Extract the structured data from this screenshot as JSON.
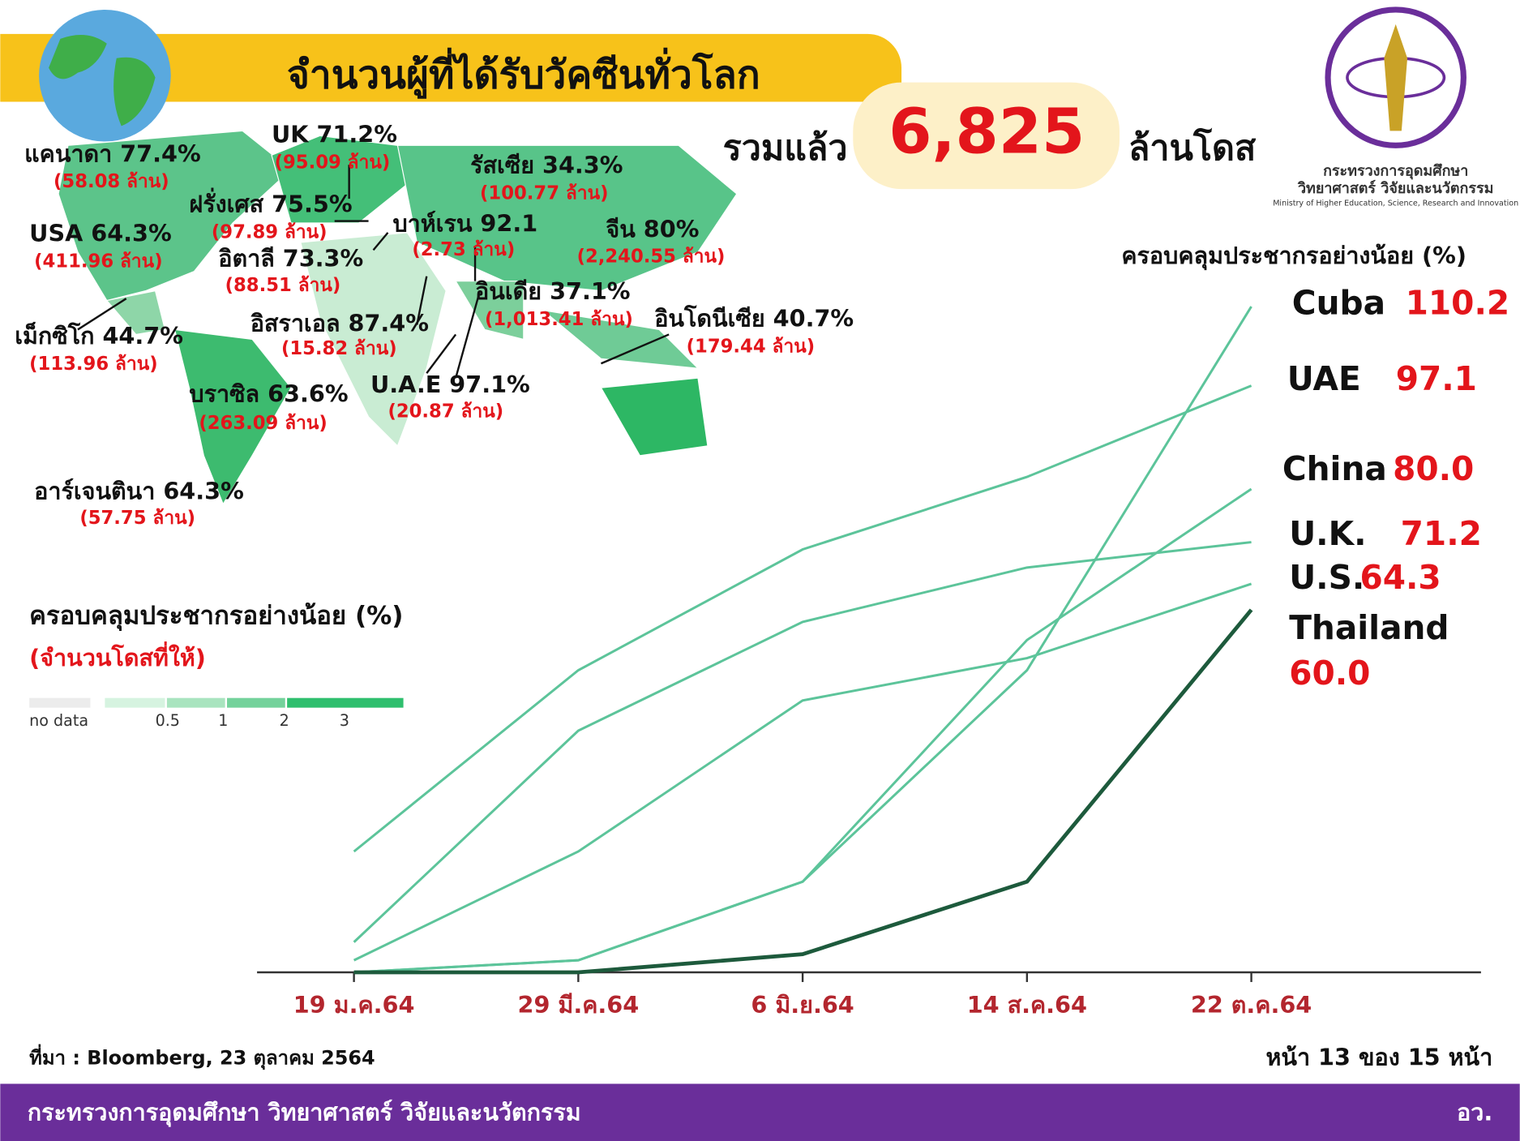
{
  "header": {
    "title": "จำนวนผู้ที่ได้รับวัคซีนทั่วโลก",
    "total_prefix": "รวมแล้ว",
    "total": "6,825",
    "total_suffix": "ล้านโดส"
  },
  "ministry": {
    "name_line1": "กระทรวงการอุดมศึกษา",
    "name_line2": "วิทยาศาสตร์ วิจัยและนวัตกรรม",
    "name_en": "Ministry of Higher Education, Science, Research and Innovation"
  },
  "map": {
    "labels": [
      {
        "country": "แคนาดา 77.4%",
        "doses": "(58.08 ล้าน)"
      },
      {
        "country": "UK 71.2%",
        "doses": "(95.09 ล้าน)"
      },
      {
        "country": "รัสเซีย 34.3%",
        "doses": "(100.77 ล้าน)"
      },
      {
        "country": "ฝรั่งเศส 75.5%",
        "doses": "(97.89 ล้าน)"
      },
      {
        "country": "USA 64.3%",
        "doses": "(411.96 ล้าน)"
      },
      {
        "country": "บาห์เรน 92.1",
        "doses": "(2.73 ล้าน)"
      },
      {
        "country": "จีน 80%",
        "doses": "(2,240.55 ล้าน)"
      },
      {
        "country": "อิตาลี 73.3%",
        "doses": "(88.51 ล้าน)"
      },
      {
        "country": "อินเดีย 37.1%",
        "doses": "(1,013.41 ล้าน)"
      },
      {
        "country": "อิสราเอล 87.4%",
        "doses": "(15.82 ล้าน)"
      },
      {
        "country": "อินโดนีเซีย 40.7%",
        "doses": "(179.44 ล้าน)"
      },
      {
        "country": "เม็กซิโก 44.7%",
        "doses": "(113.96 ล้าน)"
      },
      {
        "country": "U.A.E 97.1%",
        "doses": "(20.87 ล้าน)"
      },
      {
        "country": "บราซิล 63.6%",
        "doses": "(263.09 ล้าน)"
      },
      {
        "country": "อาร์เจนตินา 64.3%",
        "doses": "(57.75 ล้าน)"
      }
    ],
    "legend_title": "ครอบคลุมประชากรอย่างน้อย (%)",
    "legend_subtitle": "(จำนวนโดสที่ให้)",
    "legend": [
      "no data",
      "0.5",
      "1",
      "2",
      "3"
    ]
  },
  "chart_data": {
    "type": "line",
    "title": "ครอบคลุมประชากรอย่างน้อย (%)",
    "categories": [
      "19 ม.ค.64",
      "29 มี.ค.64",
      "6 มิ.ย.64",
      "14 ส.ค.64",
      "22 ต.ค.64"
    ],
    "series": [
      {
        "name": "Cuba",
        "color": "#5cc49a",
        "values": [
          0,
          2,
          15,
          50,
          110.2
        ]
      },
      {
        "name": "UAE",
        "color": "#5cc49a",
        "values": [
          20,
          50,
          70,
          82,
          97.1
        ]
      },
      {
        "name": "China",
        "color": "#5cc49a",
        "values": [
          0,
          2,
          15,
          55,
          80
        ],
        "value_labels": [
          null,
          null,
          null,
          null,
          "80.0"
        ]
      },
      {
        "name": "U.K.",
        "color": "#5cc49a",
        "values": [
          5,
          40,
          58,
          67,
          71.2
        ]
      },
      {
        "name": "U.S.",
        "color": "#5cc49a",
        "values": [
          2,
          20,
          45,
          52,
          64.3
        ]
      },
      {
        "name": "Thailand",
        "color": "#1d5a3c",
        "values": [
          0,
          0,
          3,
          15,
          60
        ],
        "value_labels": [
          null,
          null,
          null,
          null,
          "60.0"
        ]
      }
    ],
    "ylim": [
      0,
      112
    ]
  },
  "source": "ที่มา : Bloomberg, 23 ตุลาคม 2564",
  "page": "หน้า 13 ของ 15 หน้า",
  "footer": {
    "left": "กระทรวงการอุดมศึกษา วิทยาศาสตร์ วิจัยและนวัตกรรม",
    "right": "อว."
  }
}
